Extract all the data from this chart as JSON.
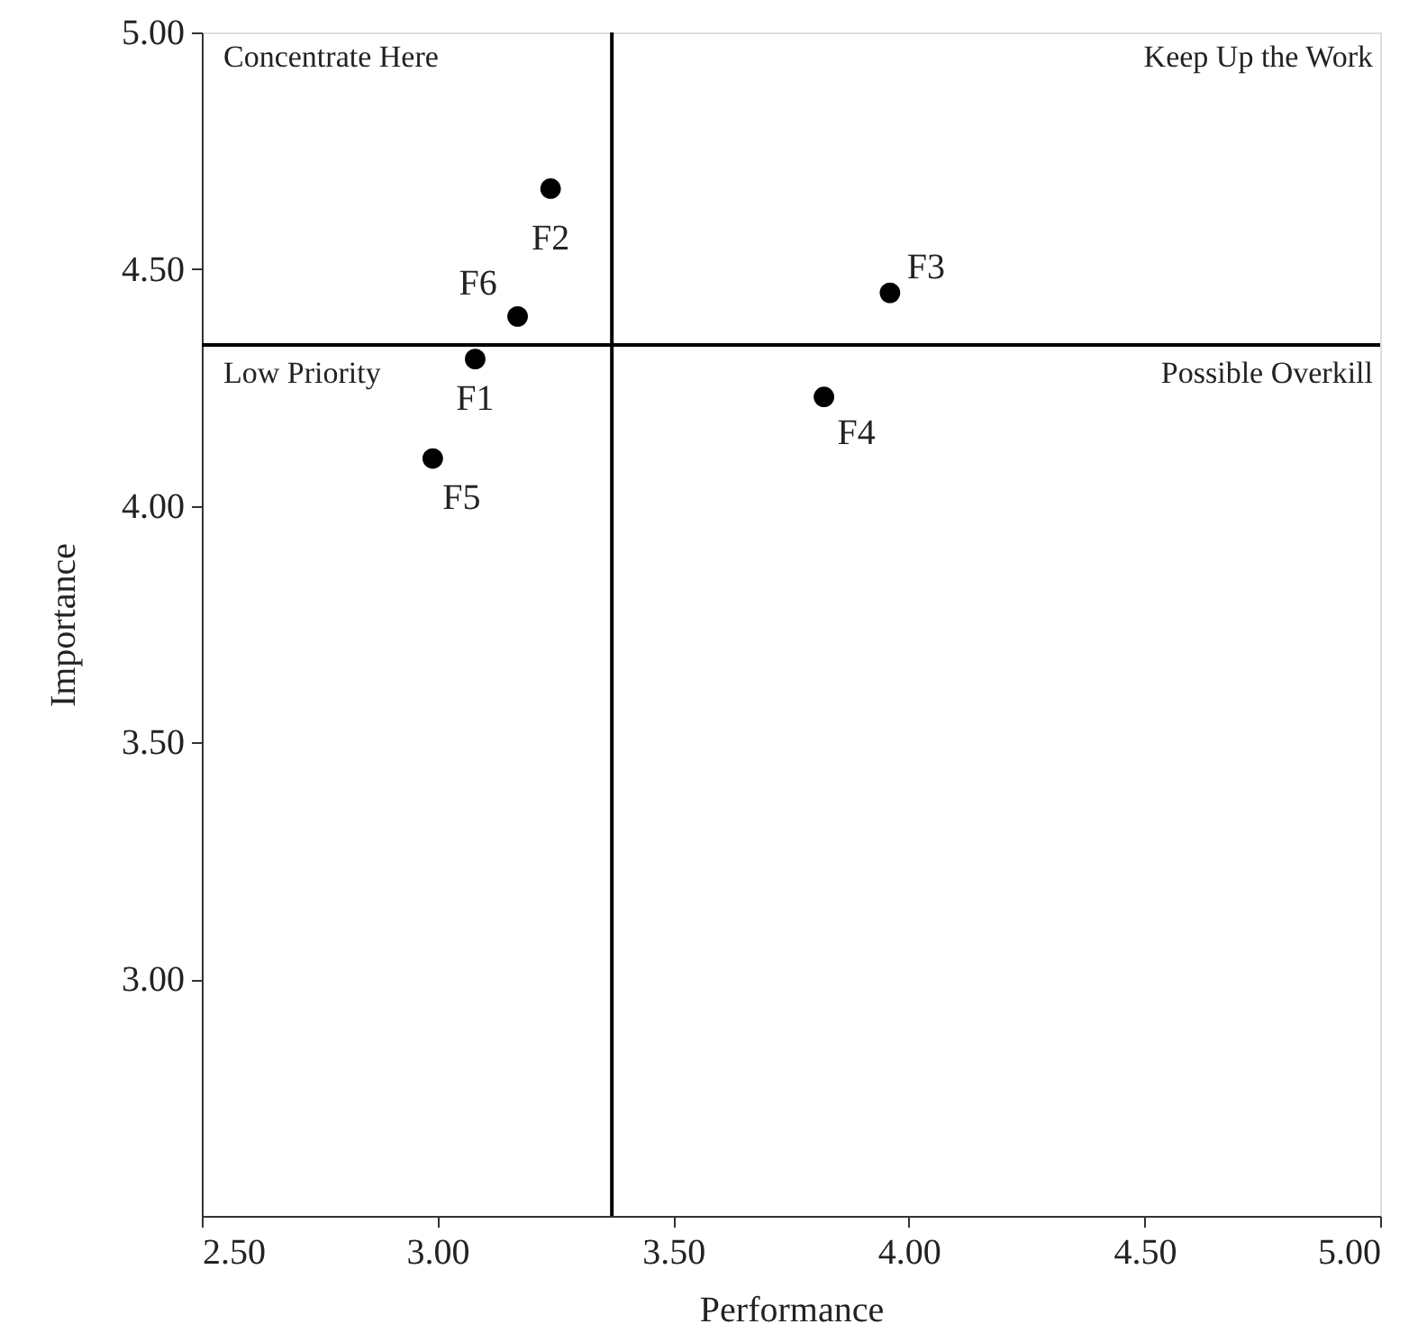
{
  "chart_data": {
    "type": "scatter",
    "xlabel": "Performance",
    "ylabel": "Importance",
    "xlim": [
      2.5,
      5.0
    ],
    "ylim": [
      2.5,
      5.0
    ],
    "xticks": [
      {
        "value": 2.5,
        "label": "2.50"
      },
      {
        "value": 3.0,
        "label": "3.00"
      },
      {
        "value": 3.5,
        "label": "3.50"
      },
      {
        "value": 4.0,
        "label": "4.00"
      },
      {
        "value": 4.5,
        "label": "4.50"
      },
      {
        "value": 5.0,
        "label": "5.00"
      }
    ],
    "yticks": [
      {
        "value": 3.0,
        "label": "3.00"
      },
      {
        "value": 3.5,
        "label": "3.50"
      },
      {
        "value": 4.0,
        "label": "4.00"
      },
      {
        "value": 4.5,
        "label": "4.50"
      },
      {
        "value": 5.0,
        "label": "5.00"
      }
    ],
    "series": [
      {
        "color": "#000000",
        "x": [
          3.08,
          3.24,
          3.96,
          3.82,
          2.99,
          3.17
        ],
        "values": [
          4.31,
          4.67,
          4.45,
          4.23,
          4.1,
          4.4
        ]
      }
    ],
    "marker": "circle",
    "grid": false,
    "ref_lines": [
      {
        "axis": "x",
        "value": 3.37,
        "color": "#000000"
      },
      {
        "axis": "y",
        "value": 4.34,
        "color": "#000000"
      }
    ],
    "annotations": [
      "Concentrate Here",
      "Keep Up the Work",
      "Low Priority",
      "Possible Overkill",
      {
        "text": "F1",
        "x": 3.08,
        "y": 4.31
      },
      {
        "text": "F2",
        "x": 3.24,
        "y": 4.67
      },
      {
        "text": "F3",
        "x": 3.96,
        "y": 4.45
      },
      {
        "text": "F4",
        "x": 3.82,
        "y": 4.23
      },
      {
        "text": "F5",
        "x": 2.99,
        "y": 4.1
      },
      {
        "text": "F6",
        "x": 3.17,
        "y": 4.4
      }
    ]
  }
}
